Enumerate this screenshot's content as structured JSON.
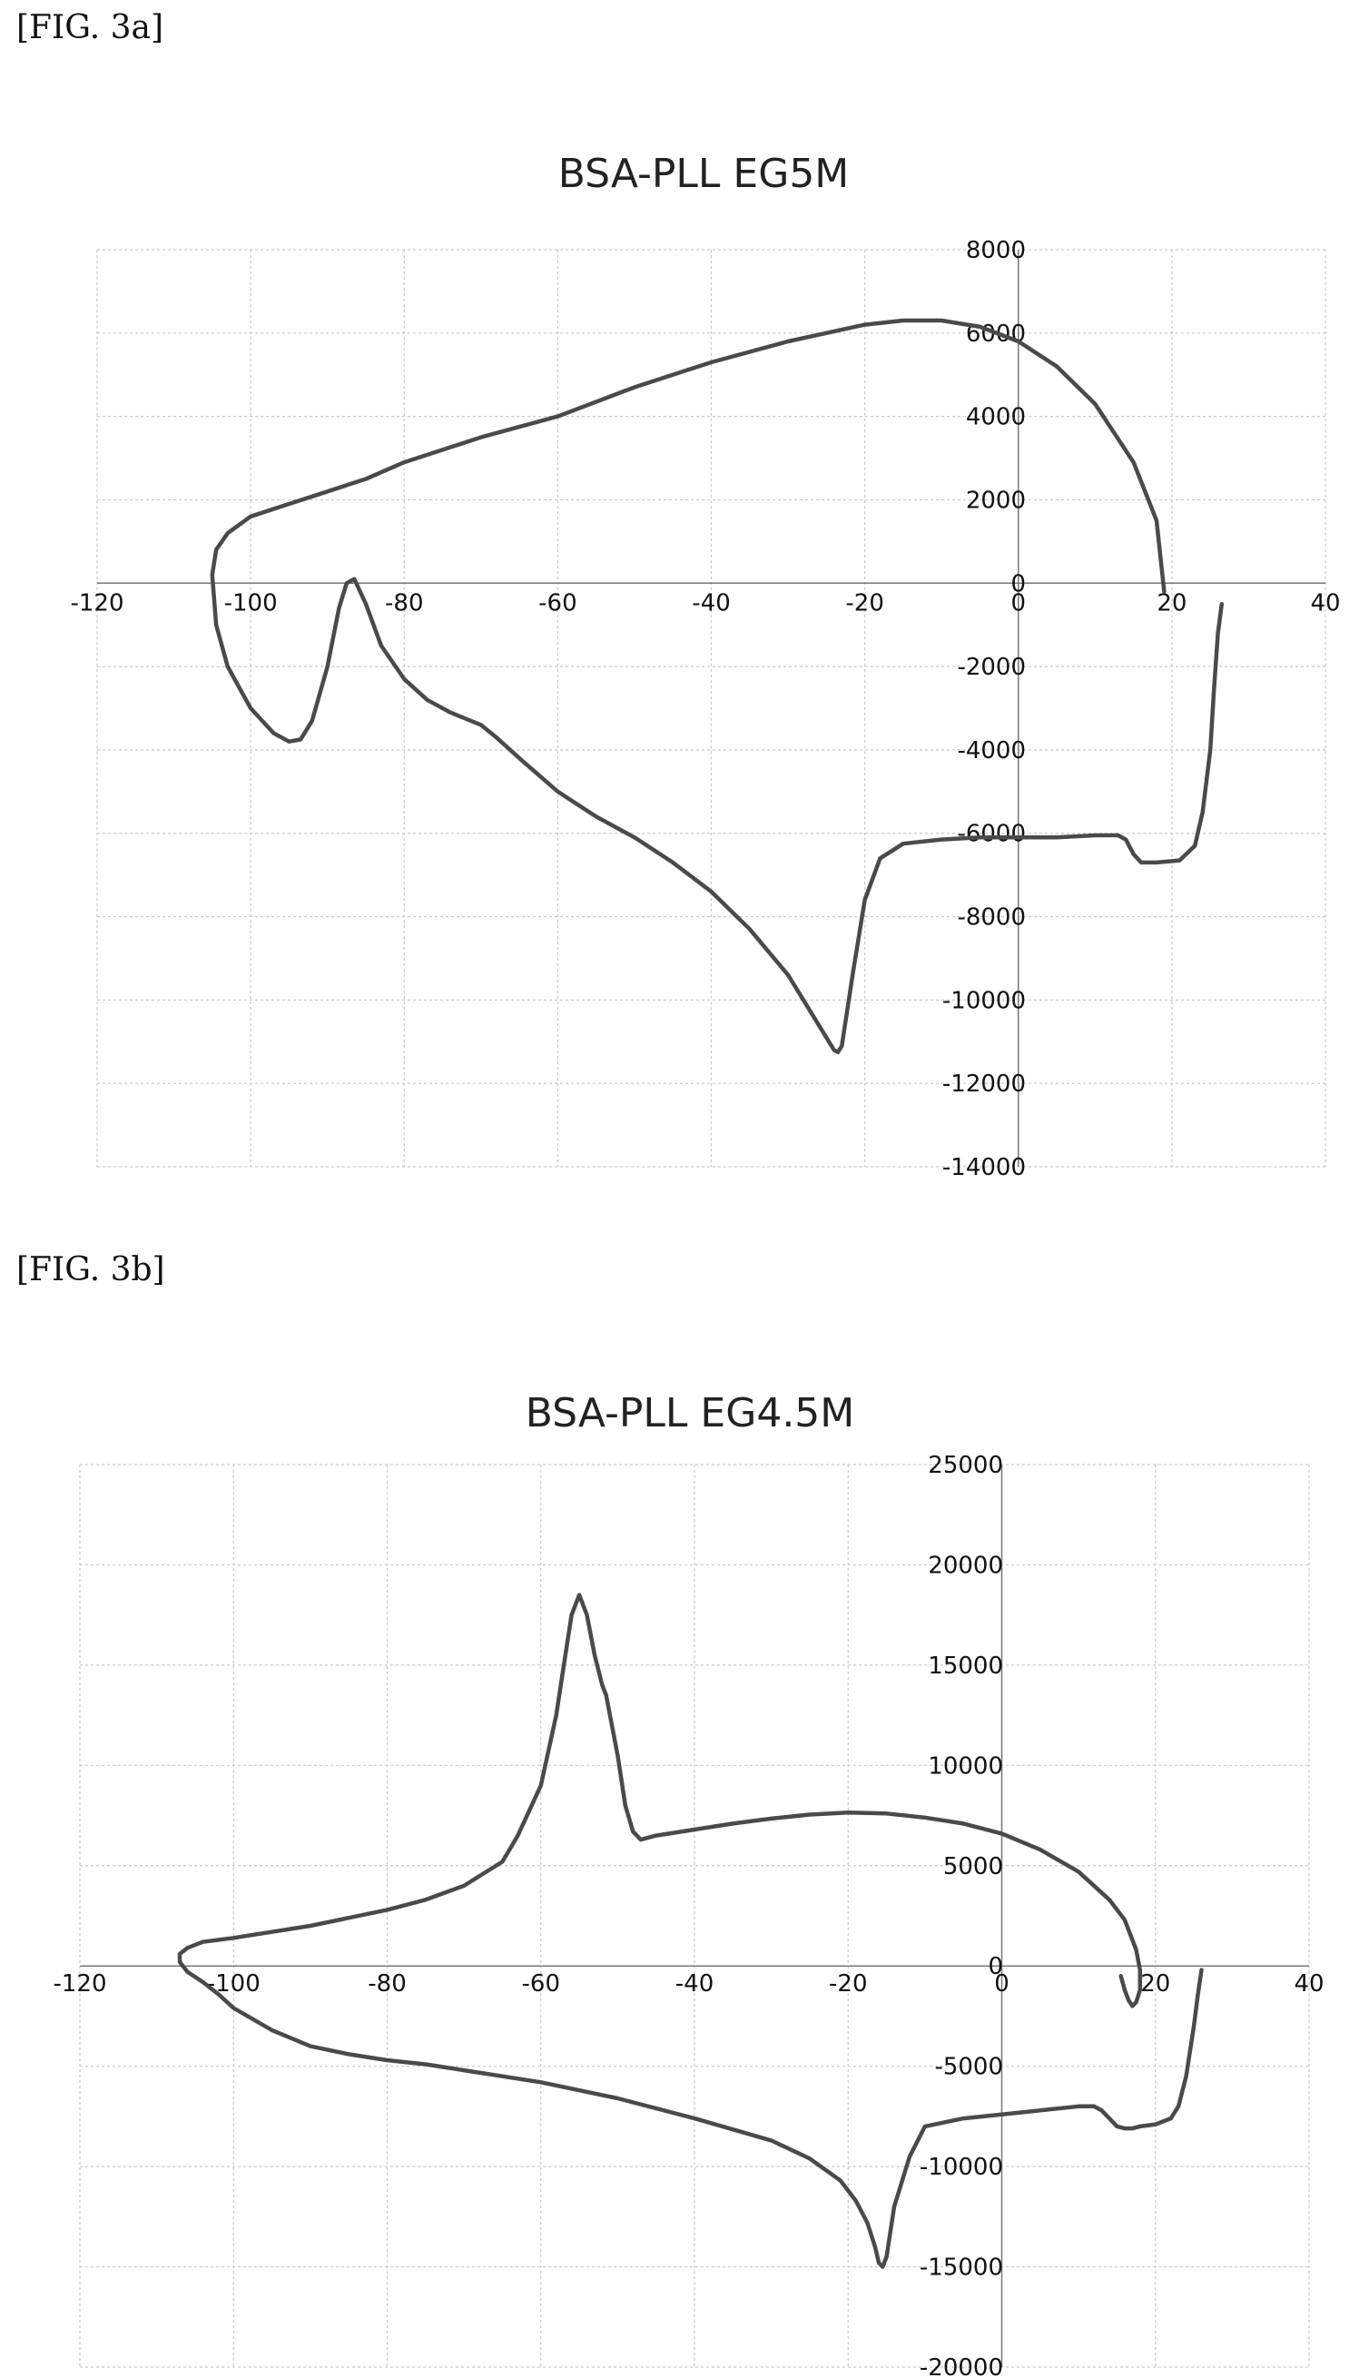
{
  "figures": [
    {
      "label": "[FIG. 3a]"
    },
    {
      "label": "[FIG. 3b]"
    }
  ],
  "chart_data": [
    {
      "type": "line",
      "title": "BSA-PLL   EG5M",
      "xlim": [
        -120,
        40
      ],
      "ylim": [
        -14000,
        8000
      ],
      "xticks": [
        -120,
        -100,
        -80,
        -60,
        -40,
        -20,
        0,
        20,
        40
      ],
      "yticks": [
        8000,
        6000,
        4000,
        2000,
        0,
        -2000,
        -4000,
        -6000,
        -8000,
        -10000,
        -12000,
        -14000
      ],
      "grid": true,
      "series": [
        {
          "color": "#4a4a4a",
          "x": [
            19,
            18,
            15,
            10,
            5,
            0,
            -5,
            -10,
            -15,
            -20,
            -25,
            -30,
            -40,
            -50,
            -60,
            -70,
            -75,
            -80,
            -85,
            -90,
            -95,
            -100,
            -103,
            -104.5,
            -105,
            -104.5,
            -103,
            -100,
            -97,
            -95,
            -93.5,
            -92,
            -90,
            -88.5,
            -87.5,
            -86.5,
            -85,
            -83,
            -80,
            -77,
            -74,
            -70,
            -68,
            -65,
            -60,
            -55,
            -50,
            -45,
            -40,
            -35,
            -30,
            -27,
            -25,
            -24,
            -23.5,
            -23,
            -22.5,
            -21.5,
            -20,
            -18,
            -15,
            -10,
            -5,
            0,
            5,
            10,
            13,
            14,
            15,
            16,
            18,
            21,
            23,
            24,
            25,
            25.5,
            26,
            26.5
          ],
          "y": [
            -200,
            1500,
            2900,
            4300,
            5200,
            5800,
            6150,
            6300,
            6300,
            6200,
            6000,
            5800,
            5300,
            4700,
            4000,
            3500,
            3200,
            2900,
            2500,
            2200,
            1900,
            1600,
            1200,
            800,
            200,
            -1000,
            -2000,
            -3000,
            -3600,
            -3800,
            -3750,
            -3300,
            -2000,
            -600,
            0,
            100,
            -500,
            -1500,
            -2300,
            -2800,
            -3100,
            -3400,
            -3700,
            -4200,
            -5000,
            -5600,
            -6100,
            -6700,
            -7400,
            -8300,
            -9400,
            -10300,
            -10900,
            -11200,
            -11250,
            -11100,
            -10500,
            -9300,
            -7600,
            -6600,
            -6250,
            -6150,
            -6100,
            -6100,
            -6100,
            -6050,
            -6050,
            -6150,
            -6500,
            -6700,
            -6700,
            -6650,
            -6300,
            -5500,
            -4000,
            -2500,
            -1200,
            -500
          ]
        }
      ]
    },
    {
      "type": "line",
      "title": "BSA-PLL EG4.5M",
      "xlim": [
        -120,
        40
      ],
      "ylim": [
        -20000,
        25000
      ],
      "xticks": [
        -120,
        -100,
        -80,
        -60,
        -40,
        -20,
        0,
        20,
        40
      ],
      "yticks": [
        25000,
        20000,
        15000,
        10000,
        5000,
        0,
        -5000,
        -10000,
        -15000,
        -20000
      ],
      "grid": true,
      "series": [
        {
          "color": "#4a4a4a",
          "x": [
            15.5,
            16,
            16.5,
            17,
            17.5,
            18,
            18,
            17.5,
            16,
            14,
            10,
            5,
            0,
            -5,
            -10,
            -15,
            -20,
            -25,
            -30,
            -35,
            -40,
            -45,
            -47,
            -48,
            -49,
            -50,
            -51,
            -51.5,
            -52,
            -53,
            -54,
            -55,
            -56,
            -57,
            -58,
            -60,
            -63,
            -65,
            -70,
            -75,
            -80,
            -90,
            -100,
            -104,
            -106,
            -107,
            -107,
            -106,
            -104,
            -102,
            -100,
            -95,
            -90,
            -85,
            -80,
            -75,
            -70,
            -60,
            -50,
            -40,
            -30,
            -25,
            -21,
            -19,
            -17.5,
            -16.5,
            -16,
            -15.5,
            -15,
            -14,
            -12,
            -10,
            -5,
            0,
            5,
            10,
            12,
            13,
            14,
            15,
            16,
            17,
            18,
            20,
            22,
            23,
            24,
            25,
            25.5,
            26
          ],
          "y": [
            -500,
            -1200,
            -1700,
            -2000,
            -1800,
            -1200,
            -200,
            800,
            2300,
            3300,
            4700,
            5800,
            6600,
            7100,
            7400,
            7600,
            7650,
            7550,
            7350,
            7100,
            6800,
            6500,
            6300,
            6700,
            8000,
            10500,
            12500,
            13500,
            14000,
            15500,
            17500,
            18500,
            17500,
            15000,
            12500,
            9000,
            6500,
            5200,
            4000,
            3300,
            2800,
            2000,
            1400,
            1200,
            900,
            600,
            200,
            -300,
            -800,
            -1400,
            -2100,
            -3200,
            -4000,
            -4400,
            -4700,
            -4900,
            -5200,
            -5800,
            -6600,
            -7600,
            -8700,
            -9600,
            -10700,
            -11700,
            -12800,
            -14000,
            -14800,
            -15000,
            -14500,
            -12000,
            -9500,
            -8000,
            -7600,
            -7400,
            -7200,
            -7000,
            -7000,
            -7200,
            -7600,
            -8000,
            -8100,
            -8100,
            -8000,
            -7900,
            -7600,
            -7000,
            -5500,
            -3000,
            -1500,
            -200
          ]
        }
      ]
    }
  ]
}
